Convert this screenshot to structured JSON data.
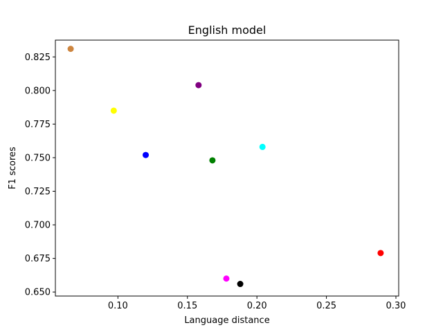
{
  "chart_data": {
    "type": "scatter",
    "title": "English model",
    "xlabel": "Language distance",
    "ylabel": "F1 scores",
    "xlim": [
      0.055,
      0.302
    ],
    "ylim": [
      0.647,
      0.8375
    ],
    "xticks": [
      0.1,
      0.15,
      0.2,
      0.25,
      0.3
    ],
    "xtick_labels": [
      "0.10",
      "0.15",
      "0.20",
      "0.25",
      "0.30"
    ],
    "yticks": [
      0.65,
      0.675,
      0.7,
      0.725,
      0.75,
      0.775,
      0.8,
      0.825
    ],
    "ytick_labels": [
      "0.650",
      "0.675",
      "0.700",
      "0.725",
      "0.750",
      "0.775",
      "0.800",
      "0.825"
    ],
    "grid": false,
    "points": [
      {
        "x": 0.066,
        "y": 0.831,
        "color": "#cd853f"
      },
      {
        "x": 0.097,
        "y": 0.785,
        "color": "#ffff00"
      },
      {
        "x": 0.12,
        "y": 0.752,
        "color": "#0000ff"
      },
      {
        "x": 0.158,
        "y": 0.804,
        "color": "#800080"
      },
      {
        "x": 0.168,
        "y": 0.748,
        "color": "#008000"
      },
      {
        "x": 0.178,
        "y": 0.66,
        "color": "#ff00ff"
      },
      {
        "x": 0.188,
        "y": 0.656,
        "color": "#000000"
      },
      {
        "x": 0.204,
        "y": 0.758,
        "color": "#00ffff"
      },
      {
        "x": 0.289,
        "y": 0.679,
        "color": "#ff0000"
      }
    ]
  }
}
